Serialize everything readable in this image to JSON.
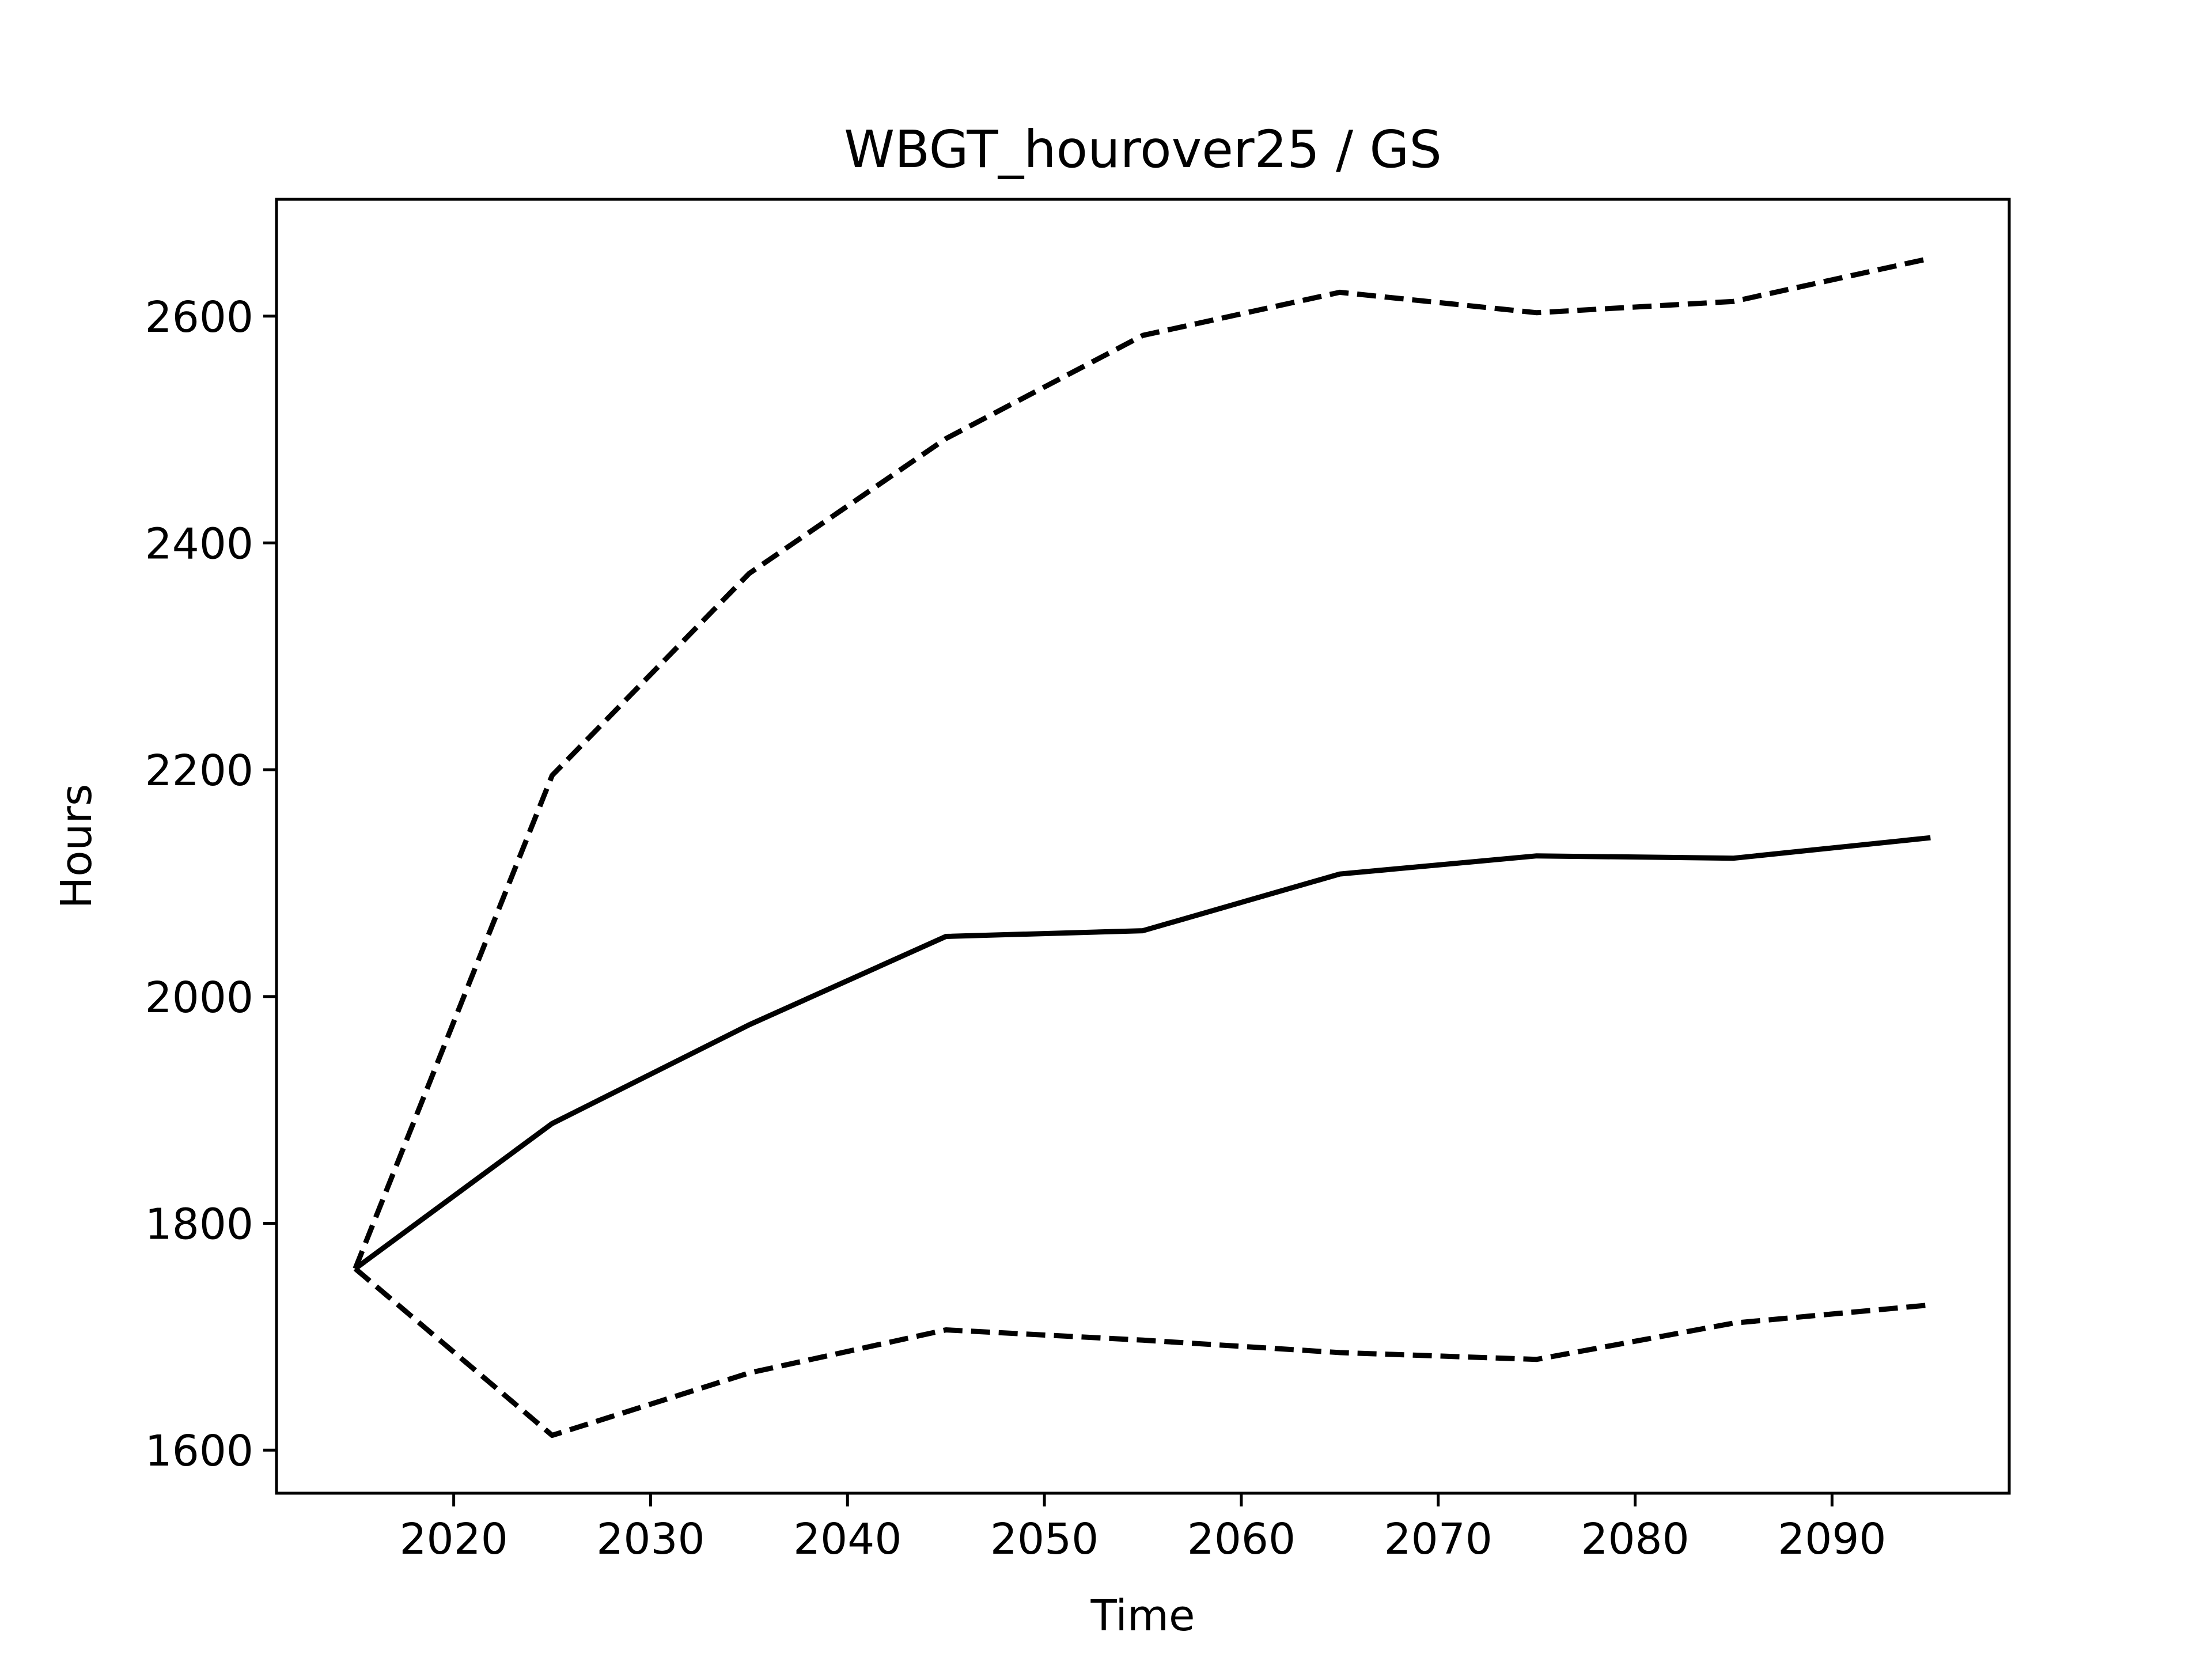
{
  "chart_data": {
    "type": "line",
    "title": "WBGT_hourover25 / GS",
    "xlabel": "Time",
    "ylabel": "Hours",
    "xlim": [
      2011,
      2099
    ],
    "ylim": [
      1562,
      2703
    ],
    "xticks": [
      2020,
      2030,
      2040,
      2050,
      2060,
      2070,
      2080,
      2090
    ],
    "yticks": [
      1600,
      1800,
      2000,
      2200,
      2400,
      2600
    ],
    "x": [
      2015,
      2025,
      2035,
      2045,
      2055,
      2065,
      2075,
      2085,
      2095
    ],
    "series": [
      {
        "style": "solid",
        "color": "#000000",
        "values": [
          1760,
          1888,
          1975,
          2053,
          2058,
          2108,
          2124,
          2122,
          2140
        ]
      },
      {
        "style": "dashed",
        "color": "#000000",
        "values": [
          1760,
          2195,
          2373,
          2492,
          2583,
          2621,
          2603,
          2613,
          2651
        ]
      },
      {
        "style": "dashed",
        "color": "#000000",
        "values": [
          1760,
          1613,
          1668,
          1706,
          1697,
          1686,
          1680,
          1712,
          1728
        ]
      }
    ],
    "grid": false,
    "legend": false
  }
}
